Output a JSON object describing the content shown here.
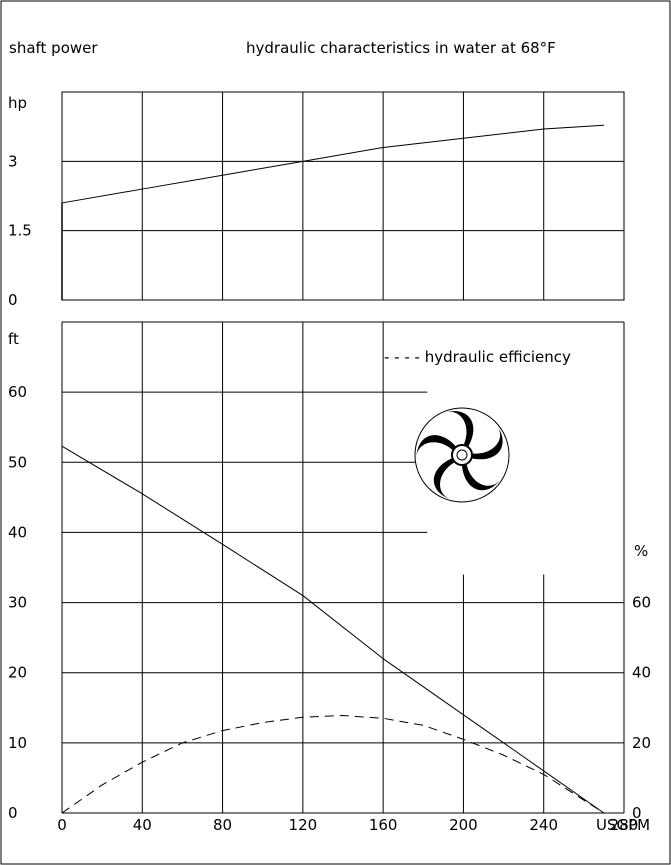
{
  "header": {
    "left_label": "shaft power",
    "title": "hydraulic characteristics in water at 68°F"
  },
  "chart_data": [
    {
      "type": "line",
      "name": "power-chart",
      "ylabel": "hp",
      "xlim": [
        0,
        280
      ],
      "ylim": [
        0,
        4.5
      ],
      "grid": true,
      "yticks": [
        {
          "value": 0,
          "label": "0"
        },
        {
          "value": 1.5,
          "label": "1.5"
        },
        {
          "value": 3,
          "label": "3"
        }
      ],
      "series": [
        {
          "style": "solid",
          "x": [
            0,
            40,
            80,
            120,
            160,
            200,
            240,
            270
          ],
          "y": [
            2.1,
            2.4,
            2.7,
            3.0,
            3.3,
            3.5,
            3.7,
            3.78
          ]
        }
      ]
    },
    {
      "type": "line",
      "name": "head-efficiency-chart",
      "ylabel": "ft",
      "y2label": "%",
      "xlabel": "USGPM",
      "xlim": [
        0,
        280
      ],
      "ylim": [
        0,
        70
      ],
      "y2lim": [
        0,
        140
      ],
      "grid": true,
      "xticks": [
        "0",
        "40",
        "80",
        "120",
        "160",
        "200",
        "240",
        "280"
      ],
      "yticks": [
        "0",
        "10",
        "20",
        "30",
        "40",
        "50",
        "60"
      ],
      "y2ticks": [
        "0",
        "20",
        "40",
        "60"
      ],
      "legend": {
        "label": "- - - - hydraulic efficiency",
        "position": "top-right"
      },
      "series": [
        {
          "style": "solid",
          "axis": "left",
          "x": [
            0,
            40,
            80,
            120,
            160,
            200,
            240,
            270
          ],
          "y": [
            52.3,
            45.5,
            38.3,
            31.0,
            22.0,
            14.0,
            6.0,
            0
          ]
        },
        {
          "style": "dashed",
          "axis": "right",
          "x": [
            0,
            20,
            40,
            60,
            80,
            100,
            120,
            140,
            160,
            180,
            200,
            220,
            240,
            255,
            270
          ],
          "y": [
            0,
            8,
            14.5,
            20,
            23.5,
            25.8,
            27.3,
            27.8,
            27,
            25,
            21,
            16.5,
            11,
            5.5,
            0
          ]
        }
      ]
    }
  ],
  "impeller_icon": "impeller-icon"
}
